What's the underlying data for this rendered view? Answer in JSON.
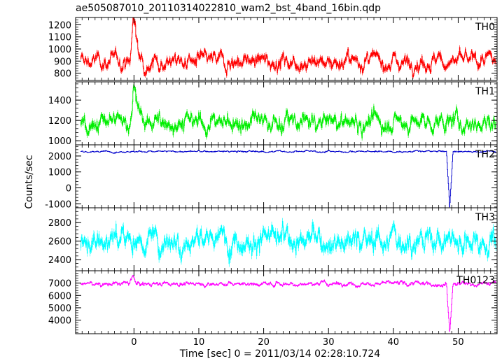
{
  "title": "ae505087010_20110314022810_wam2_bst_4band_16bin.qdp",
  "chart_data": {
    "type": "line",
    "title": "ae505087010_20110314022810_wam2_bst_4band_16bin.qdp",
    "xlabel": "Time [sec] 0 = 2011/03/14 02:28:10.724",
    "ylabel": "Counts/sec",
    "xlim": [
      -9,
      56
    ],
    "xticks": [
      0,
      10,
      20,
      30,
      40,
      50
    ],
    "grid": false,
    "panels": [
      {
        "name": "TH0",
        "color": "#ff0000",
        "ylim": [
          740,
          1260
        ],
        "yticks": [
          800,
          900,
          1000,
          1100,
          1200
        ],
        "baseline": 900,
        "noise": 40,
        "features": [
          {
            "x": -0.1,
            "y": 1240
          },
          {
            "x": 0.3,
            "y": 1100
          },
          {
            "x": 1.2,
            "y": 960
          }
        ]
      },
      {
        "name": "TH1",
        "color": "#00ee00",
        "ylim": [
          960,
          1580
        ],
        "yticks": [
          1000,
          1200,
          1400
        ],
        "baseline": 1180,
        "noise": 55,
        "features": [
          {
            "x": -0.1,
            "y": 1530
          },
          {
            "x": 0.3,
            "y": 1390
          },
          {
            "x": 1.0,
            "y": 1270
          }
        ]
      },
      {
        "name": "TH2",
        "color": "#0000cc",
        "ylim": [
          -1250,
          2700
        ],
        "yticks": [
          -1000,
          0,
          1000,
          2000
        ],
        "baseline": 2280,
        "noise": 35,
        "features": [
          {
            "x": 48.7,
            "y": -1200
          }
        ]
      },
      {
        "name": "TH3",
        "color": "#00ffff",
        "ylim": [
          2280,
          2960
        ],
        "yticks": [
          2400,
          2600,
          2800
        ],
        "baseline": 2620,
        "noise": 80,
        "features": []
      },
      {
        "name": "TH0123",
        "color": "#ff00ff",
        "ylim": [
          2900,
          8000
        ],
        "yticks": [
          4000,
          5000,
          6000,
          7000
        ],
        "baseline": 6950,
        "noise": 110,
        "features": [
          {
            "x": -0.2,
            "y": 7600
          },
          {
            "x": 48.7,
            "y": 3100
          }
        ]
      }
    ]
  }
}
